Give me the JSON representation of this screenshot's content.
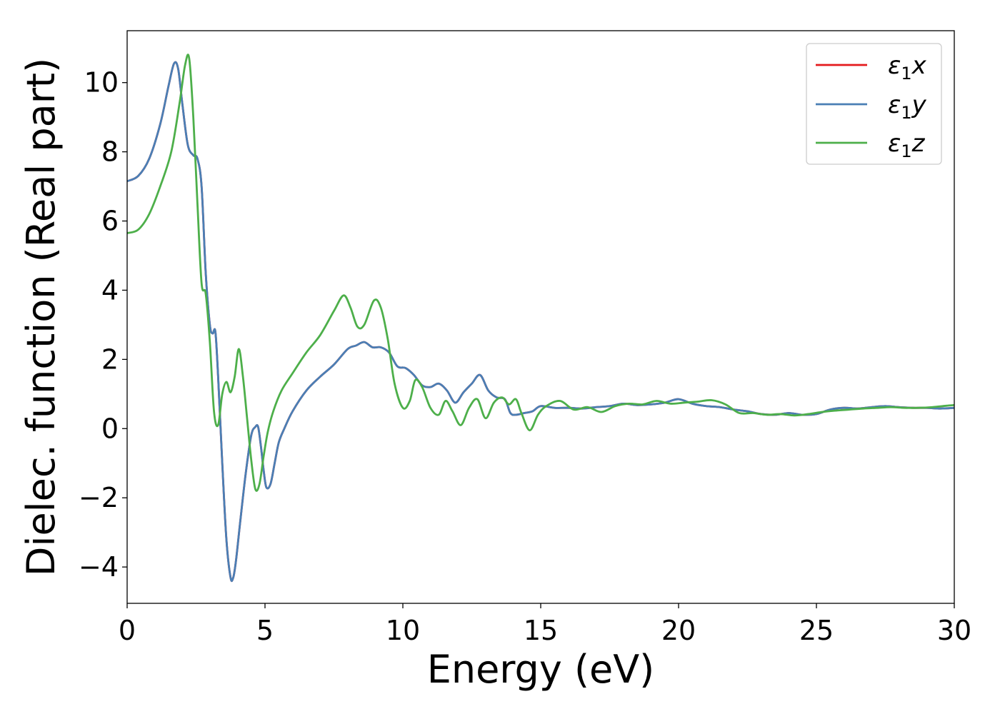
{
  "chart_data": {
    "type": "line",
    "title": "",
    "xlabel": "Energy (eV)",
    "ylabel": "Dielec. function (Real part)",
    "xlim": [
      0,
      30
    ],
    "ylim": [
      -5.05,
      11.5
    ],
    "xticks": [
      0,
      5,
      10,
      15,
      20,
      25,
      30
    ],
    "yticks": [
      -4,
      -2,
      0,
      2,
      4,
      6,
      8,
      10
    ],
    "xtick_labels": [
      "0",
      "5",
      "10",
      "15",
      "20",
      "25",
      "30"
    ],
    "ytick_labels": [
      "−4",
      "−2",
      "0",
      "2",
      "4",
      "6",
      "8",
      "10"
    ],
    "grid": false,
    "legend_position": "top-right",
    "series": [
      {
        "name": "ε1x",
        "legend_base": "ε",
        "legend_sub": "1",
        "legend_suffix": "x",
        "color": "#e41a1c",
        "x": [
          0,
          0.4,
          0.8,
          1.2,
          1.5,
          1.7,
          1.85,
          2.0,
          2.2,
          2.4,
          2.55,
          2.7,
          2.85,
          3.0,
          3.1,
          3.2,
          3.3,
          3.45,
          3.6,
          3.75,
          3.85,
          3.95,
          4.1,
          4.3,
          4.5,
          4.65,
          4.75,
          4.85,
          4.95,
          5.05,
          5.2,
          5.35,
          5.5,
          5.7,
          6.0,
          6.5,
          7.0,
          7.5,
          8.0,
          8.3,
          8.6,
          8.9,
          9.2,
          9.5,
          9.8,
          10.1,
          10.4,
          10.7,
          11.0,
          11.3,
          11.6,
          11.9,
          12.2,
          12.5,
          12.8,
          13.1,
          13.4,
          13.7,
          13.9,
          14.1,
          14.4,
          14.7,
          15.0,
          15.5,
          16.0,
          16.5,
          17.0,
          17.5,
          18.0,
          18.5,
          19.0,
          19.5,
          20.0,
          20.5,
          21.0,
          21.5,
          22.0,
          22.5,
          23.0,
          23.5,
          24.0,
          24.5,
          25.0,
          25.5,
          26.0,
          26.5,
          27.0,
          27.5,
          28.0,
          28.5,
          29.0,
          29.5,
          30.0
        ],
        "y": [
          7.15,
          7.3,
          7.8,
          8.8,
          9.9,
          10.55,
          10.4,
          9.4,
          8.2,
          7.9,
          7.8,
          7.0,
          4.5,
          3.0,
          2.75,
          2.8,
          1.5,
          -1.0,
          -3.2,
          -4.3,
          -4.3,
          -3.8,
          -2.7,
          -1.3,
          -0.2,
          0.05,
          0.05,
          -0.5,
          -1.2,
          -1.7,
          -1.6,
          -1.0,
          -0.4,
          0.0,
          0.5,
          1.1,
          1.5,
          1.85,
          2.3,
          2.4,
          2.5,
          2.35,
          2.35,
          2.2,
          1.8,
          1.75,
          1.55,
          1.25,
          1.2,
          1.3,
          1.1,
          0.75,
          1.05,
          1.3,
          1.55,
          1.1,
          0.9,
          0.85,
          0.45,
          0.4,
          0.45,
          0.5,
          0.65,
          0.6,
          0.6,
          0.58,
          0.62,
          0.65,
          0.72,
          0.68,
          0.7,
          0.75,
          0.85,
          0.72,
          0.65,
          0.62,
          0.55,
          0.5,
          0.42,
          0.4,
          0.45,
          0.4,
          0.42,
          0.55,
          0.6,
          0.58,
          0.62,
          0.65,
          0.62,
          0.6,
          0.6,
          0.58,
          0.6
        ]
      },
      {
        "name": "ε1y",
        "legend_base": "ε",
        "legend_sub": "1",
        "legend_suffix": "y",
        "color": "#4a7fb5",
        "x": [
          0,
          0.4,
          0.8,
          1.2,
          1.5,
          1.7,
          1.85,
          2.0,
          2.2,
          2.4,
          2.55,
          2.7,
          2.85,
          3.0,
          3.1,
          3.2,
          3.3,
          3.45,
          3.6,
          3.75,
          3.85,
          3.95,
          4.1,
          4.3,
          4.5,
          4.65,
          4.75,
          4.85,
          4.95,
          5.05,
          5.2,
          5.35,
          5.5,
          5.7,
          6.0,
          6.5,
          7.0,
          7.5,
          8.0,
          8.3,
          8.6,
          8.9,
          9.2,
          9.5,
          9.8,
          10.1,
          10.4,
          10.7,
          11.0,
          11.3,
          11.6,
          11.9,
          12.2,
          12.5,
          12.8,
          13.1,
          13.4,
          13.7,
          13.9,
          14.1,
          14.4,
          14.7,
          15.0,
          15.5,
          16.0,
          16.5,
          17.0,
          17.5,
          18.0,
          18.5,
          19.0,
          19.5,
          20.0,
          20.5,
          21.0,
          21.5,
          22.0,
          22.5,
          23.0,
          23.5,
          24.0,
          24.5,
          25.0,
          25.5,
          26.0,
          26.5,
          27.0,
          27.5,
          28.0,
          28.5,
          29.0,
          29.5,
          30.0
        ],
        "y": [
          7.15,
          7.3,
          7.8,
          8.8,
          9.9,
          10.55,
          10.4,
          9.4,
          8.2,
          7.9,
          7.8,
          7.0,
          4.5,
          3.0,
          2.75,
          2.8,
          1.5,
          -1.0,
          -3.2,
          -4.3,
          -4.3,
          -3.8,
          -2.7,
          -1.3,
          -0.2,
          0.05,
          0.05,
          -0.5,
          -1.2,
          -1.7,
          -1.6,
          -1.0,
          -0.4,
          0.0,
          0.5,
          1.1,
          1.5,
          1.85,
          2.3,
          2.4,
          2.5,
          2.35,
          2.35,
          2.2,
          1.8,
          1.75,
          1.55,
          1.25,
          1.2,
          1.3,
          1.1,
          0.75,
          1.05,
          1.3,
          1.55,
          1.1,
          0.9,
          0.85,
          0.45,
          0.4,
          0.45,
          0.5,
          0.65,
          0.6,
          0.6,
          0.58,
          0.62,
          0.65,
          0.72,
          0.68,
          0.7,
          0.75,
          0.85,
          0.72,
          0.65,
          0.62,
          0.55,
          0.5,
          0.42,
          0.4,
          0.45,
          0.4,
          0.42,
          0.55,
          0.6,
          0.58,
          0.62,
          0.65,
          0.62,
          0.6,
          0.6,
          0.58,
          0.6
        ]
      },
      {
        "name": "ε1z",
        "legend_base": "ε",
        "legend_sub": "1",
        "legend_suffix": "z",
        "color": "#4daf4a",
        "x": [
          0,
          0.4,
          0.8,
          1.2,
          1.6,
          1.9,
          2.1,
          2.25,
          2.4,
          2.55,
          2.7,
          2.85,
          3.0,
          3.15,
          3.3,
          3.45,
          3.6,
          3.75,
          3.9,
          4.05,
          4.2,
          4.35,
          4.5,
          4.65,
          4.8,
          4.95,
          5.1,
          5.3,
          5.6,
          6.0,
          6.5,
          7.0,
          7.5,
          7.85,
          8.1,
          8.35,
          8.6,
          8.95,
          9.2,
          9.45,
          9.7,
          10.0,
          10.25,
          10.45,
          10.7,
          11.0,
          11.3,
          11.55,
          11.8,
          12.1,
          12.4,
          12.7,
          13.0,
          13.3,
          13.6,
          13.85,
          14.1,
          14.3,
          14.6,
          14.9,
          15.2,
          15.7,
          16.2,
          16.7,
          17.2,
          17.7,
          18.2,
          18.7,
          19.2,
          19.7,
          20.2,
          20.7,
          21.2,
          21.7,
          22.2,
          22.7,
          23.2,
          23.7,
          24.2,
          24.7,
          25.2,
          25.7,
          26.2,
          26.7,
          27.2,
          27.7,
          28.2,
          28.7,
          29.2,
          29.7,
          30.0
        ],
        "y": [
          5.65,
          5.75,
          6.2,
          7.0,
          8.0,
          9.4,
          10.5,
          10.7,
          9.0,
          6.5,
          4.2,
          3.9,
          2.5,
          0.5,
          0.1,
          1.0,
          1.35,
          1.05,
          1.5,
          2.3,
          1.5,
          0.3,
          -0.9,
          -1.75,
          -1.6,
          -0.8,
          -0.1,
          0.5,
          1.1,
          1.6,
          2.2,
          2.7,
          3.4,
          3.85,
          3.5,
          2.95,
          3.0,
          3.7,
          3.5,
          2.6,
          1.3,
          0.6,
          0.8,
          1.4,
          1.2,
          0.6,
          0.4,
          0.8,
          0.5,
          0.1,
          0.6,
          0.85,
          0.3,
          0.75,
          0.9,
          0.7,
          0.85,
          0.45,
          -0.05,
          0.4,
          0.65,
          0.8,
          0.55,
          0.62,
          0.48,
          0.65,
          0.72,
          0.7,
          0.8,
          0.72,
          0.75,
          0.78,
          0.82,
          0.7,
          0.45,
          0.45,
          0.4,
          0.42,
          0.38,
          0.42,
          0.48,
          0.52,
          0.55,
          0.58,
          0.6,
          0.62,
          0.6,
          0.6,
          0.62,
          0.66,
          0.68
        ]
      }
    ]
  }
}
